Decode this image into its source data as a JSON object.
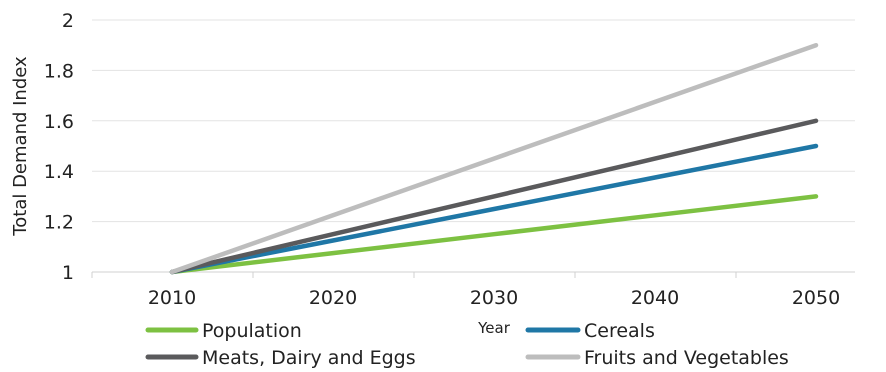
{
  "chart_data": {
    "type": "line",
    "title": "",
    "xlabel": "Year",
    "ylabel": "Total Demand Index",
    "x": [
      2010,
      2020,
      2030,
      2040,
      2050
    ],
    "x_tick_labels": [
      "2010",
      "2020",
      "2030",
      "2040",
      "2050"
    ],
    "ylim": [
      1,
      2
    ],
    "y_ticks": [
      1,
      1.2,
      1.4,
      1.6,
      1.8,
      2
    ],
    "y_tick_labels": [
      "1",
      "1.2",
      "1.4",
      "1.6",
      "1.8",
      "2"
    ],
    "grid": "horizontal",
    "legend_position": "bottom",
    "series": [
      {
        "name": "Population",
        "color": "#7dc142",
        "values": [
          1.0,
          1.075,
          1.15,
          1.225,
          1.3
        ]
      },
      {
        "name": "Cereals",
        "color": "#1f77a6",
        "values": [
          1.0,
          1.125,
          1.25,
          1.375,
          1.5
        ]
      },
      {
        "name": "Meats, Dairy and Eggs",
        "color": "#5a5a5c",
        "values": [
          1.0,
          1.15,
          1.3,
          1.45,
          1.6
        ]
      },
      {
        "name": "Fruits and Vegetables",
        "color": "#bdbdbd",
        "values": [
          1.0,
          1.225,
          1.45,
          1.675,
          1.9
        ]
      }
    ]
  }
}
